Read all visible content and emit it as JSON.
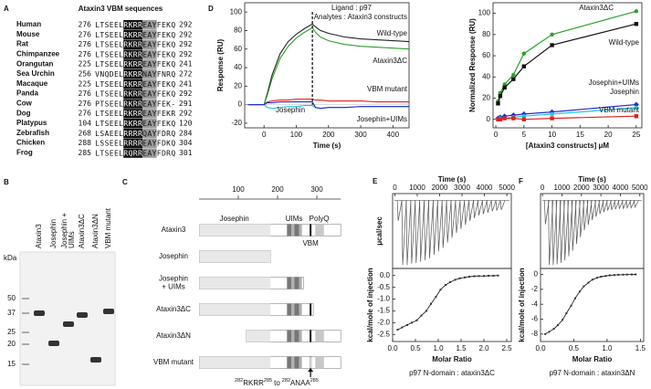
{
  "panel_labels": [
    "A",
    "B",
    "C",
    "D",
    "E",
    "F"
  ],
  "alignment": {
    "title": "Ataxin3 VBM sequences",
    "rows": [
      [
        "Human",
        276,
        "LTSEELRKRREAYFEKQ",
        292
      ],
      [
        "Mouse",
        276,
        "LTSEELRKRREAYFEKQ",
        292
      ],
      [
        "Rat",
        276,
        "LTSEELRKRREAYFEKQ",
        292
      ],
      [
        "Chimpanzee",
        276,
        "LTSEELRKRREAYFEKQ",
        292
      ],
      [
        "Orangutan",
        225,
        "LTSEELRKRREAYFEKQ",
        241
      ],
      [
        "Sea Urchin",
        256,
        "VNQDELRKRRNAYFNRQ",
        272
      ],
      [
        "Macaque",
        225,
        "LTSEELRKRREAYFEKQ",
        241
      ],
      [
        "Panda",
        276,
        "LTSEELRKRREAYFEKQ",
        292
      ],
      [
        "Cow",
        276,
        "PTSEELRKRREAYFEK-",
        291
      ],
      [
        "Dog",
        276,
        "LTSEELRKRREAYFEKR",
        292
      ],
      [
        "Platypus",
        104,
        "LTSEELRKRREAYFEKQ",
        120
      ],
      [
        "Zebrafish",
        268,
        "LSAEELRRRRQAYFDRQ",
        284
      ],
      [
        "Chicken",
        288,
        "LSSEELRRRREAYFDKQ",
        304
      ],
      [
        "Frog",
        285,
        "LTSEELRQRREAYFDRQ",
        301
      ]
    ]
  },
  "gel": {
    "unit": "kDa",
    "markers": [
      50,
      37,
      25,
      20,
      15
    ],
    "lanes": [
      [
        "Ataxin3"
      ],
      [
        "Josephin"
      ],
      [
        "Josephin +",
        "UIMs"
      ],
      [
        "Ataxin3ΔC"
      ],
      [
        "Ataxin3ΔN"
      ],
      [
        "VBM mutant"
      ]
    ]
  },
  "domains": {
    "ticks": [
      100,
      200,
      300
    ],
    "headers": [
      "Josephin",
      "UIMs",
      "PolyQ"
    ],
    "vbm": "VBM",
    "constructs": [
      [
        "Ataxin3"
      ],
      [
        "Josephin"
      ],
      [
        "Josephin",
        "+ UIMs"
      ],
      [
        "Ataxin3ΔC"
      ],
      [
        "Ataxin3ΔN"
      ],
      [
        "VBM mutant"
      ]
    ],
    "mutation": [
      "282",
      "RKRR",
      "285",
      "to",
      "282",
      "ANAA",
      "285"
    ]
  },
  "chart_data": [
    {
      "type": "line",
      "title": "Ligand : p97",
      "subtitle": "Analytes : Ataxin3 constructs",
      "x_label": "Time (s)",
      "y_label": "Response (RU)",
      "x": [
        -50,
        0,
        10,
        25,
        50,
        75,
        100,
        125,
        150,
        160,
        175,
        200,
        250,
        300,
        350,
        400,
        450
      ],
      "series": [
        {
          "name": "Wild-type",
          "color": "#222222",
          "values": [
            0,
            0,
            12,
            32,
            55,
            68,
            76,
            82,
            87,
            84,
            80,
            77,
            73,
            71,
            70,
            69,
            68
          ]
        },
        {
          "name": "Ataxin3ΔC",
          "color": "#2ca02c",
          "values": [
            0,
            0,
            10,
            28,
            50,
            63,
            72,
            78,
            83,
            78,
            73,
            69,
            65,
            63,
            62,
            61,
            60
          ]
        },
        {
          "name": "VBM mutant",
          "color": "#e02020",
          "values": [
            0,
            0,
            3,
            4,
            5,
            5,
            6,
            6,
            6,
            5,
            5,
            4,
            4,
            4,
            3,
            3,
            3
          ]
        },
        {
          "name": "Josephin",
          "color": "#1ec8e0",
          "values": [
            0,
            0,
            -3,
            -4,
            -3,
            -2,
            -2,
            -1,
            -1,
            -3,
            -4,
            -3,
            -3,
            -2,
            -2,
            -2,
            -2
          ]
        },
        {
          "name": "Josephin+UIMs",
          "color": "#2a2ad0",
          "values": [
            0,
            0,
            2,
            2,
            3,
            3,
            3,
            3,
            3,
            -3,
            -4,
            -3,
            -3,
            -2,
            -2,
            -2,
            -2
          ]
        }
      ],
      "xlim": [
        -60,
        450
      ],
      "ylim": [
        -25,
        110
      ],
      "xticks": [
        0,
        100,
        200,
        300,
        400
      ],
      "yticks": [
        -20,
        0,
        20,
        40,
        60,
        80,
        100
      ],
      "vline": 150
    },
    {
      "type": "scatter",
      "x_label": "[Ataxin3 constructs] μM",
      "y_label": "Normalized Response (RU)",
      "x": [
        0.39,
        0.78,
        1.56,
        3.13,
        5,
        10,
        25
      ],
      "series": [
        {
          "name": "Ataxin3ΔC",
          "color": "#2ca02c",
          "values": [
            17,
            25,
            33,
            42,
            62,
            80,
            102
          ]
        },
        {
          "name": "Wild-type",
          "color": "#111111",
          "values": [
            15,
            22,
            30,
            38,
            50,
            70,
            90
          ]
        },
        {
          "name": "Josephin+UIMs",
          "color": "#2a2ad0",
          "values": [
            1,
            2,
            3,
            4,
            5,
            7,
            14
          ]
        },
        {
          "name": "Josephin",
          "color": "#1ec8e0",
          "values": [
            0,
            1,
            1,
            2,
            3,
            5,
            11
          ]
        },
        {
          "name": "VBM mutant",
          "color": "#e02020",
          "values": [
            0,
            0,
            1,
            1,
            0,
            1,
            3
          ]
        }
      ],
      "xlim": [
        -0.5,
        26
      ],
      "ylim": [
        -8,
        110
      ],
      "xticks": [
        0,
        5,
        10,
        15,
        20,
        25
      ],
      "yticks": [
        0,
        20,
        40,
        60,
        80,
        100
      ]
    },
    {
      "type": "peaks",
      "x_label": "Time (s)",
      "y_label": "μcal/sec",
      "x": [
        150,
        350,
        550,
        750,
        950,
        1150,
        1350,
        1550,
        1750,
        1950,
        2150,
        2350,
        2550,
        2750,
        2950,
        3150,
        3350,
        3550,
        3750,
        3950,
        4150,
        4350,
        4550,
        4750
      ],
      "values": [
        -0.3,
        -0.95,
        -0.95,
        -0.93,
        -0.92,
        -0.9,
        -0.88,
        -0.85,
        -0.8,
        -0.75,
        -0.7,
        -0.62,
        -0.55,
        -0.48,
        -0.42,
        -0.36,
        -0.3,
        -0.26,
        -0.22,
        -0.2,
        -0.18,
        -0.16,
        -0.15,
        -0.14
      ],
      "xlim": [
        -100,
        5200
      ],
      "ylim": [
        -1.0,
        0.1
      ],
      "xticks": [
        0,
        1000,
        2000,
        3000,
        4000,
        5000
      ]
    },
    {
      "type": "isotherm",
      "x_label": "Molar Ratio",
      "y_label": "kcal/mole of injection",
      "caption": "p97 N-domain : ataxin3ΔC",
      "x": [
        0.11,
        0.21,
        0.32,
        0.42,
        0.53,
        0.63,
        0.74,
        0.84,
        0.95,
        1.05,
        1.16,
        1.26,
        1.37,
        1.47,
        1.58,
        1.68,
        1.79,
        1.89,
        2.0,
        2.1,
        2.21,
        2.31
      ],
      "values": [
        -2.3,
        -2.2,
        -2.1,
        -2.0,
        -1.9,
        -1.7,
        -1.5,
        -1.2,
        -0.9,
        -0.6,
        -0.4,
        -0.28,
        -0.18,
        -0.12,
        -0.08,
        -0.05,
        -0.03,
        -0.02,
        -0.02,
        -0.01,
        -0.01,
        0
      ],
      "xlim": [
        0,
        2.6
      ],
      "ylim": [
        -2.8,
        0.3
      ],
      "xticks": [
        {
          "value": 0,
          "label": "0.0"
        },
        0.5,
        {
          "value": 1,
          "label": "1.0"
        },
        1.5,
        {
          "value": 2,
          "label": "2.0"
        },
        2.5
      ],
      "yticks": [
        {
          "value": 0,
          "label": "0.0"
        },
        -0.5,
        {
          "value": -1,
          "label": "-1.0"
        },
        -1.5,
        {
          "value": -2,
          "label": "-2.0"
        },
        -2.5
      ]
    },
    {
      "type": "peaks",
      "x_label": "Time (s)",
      "x": [
        150,
        350,
        550,
        750,
        950,
        1150,
        1350,
        1550,
        1750,
        1950,
        2150,
        2350,
        2550,
        2750,
        2950,
        3150,
        3350,
        3550,
        3750,
        3950,
        4150,
        4350,
        4550,
        4750
      ],
      "values": [
        -0.35,
        -0.95,
        -0.95,
        -0.94,
        -0.92,
        -0.88,
        -0.82,
        -0.74,
        -0.64,
        -0.54,
        -0.44,
        -0.36,
        -0.29,
        -0.24,
        -0.2,
        -0.17,
        -0.15,
        -0.14,
        -0.13,
        -0.12,
        -0.12,
        -0.11,
        -0.11,
        -0.1
      ],
      "xlim": [
        -100,
        5200
      ],
      "ylim": [
        -1.0,
        0.1
      ],
      "xticks": [
        0,
        1000,
        2000,
        3000,
        4000,
        5000
      ]
    },
    {
      "type": "isotherm",
      "x_label": "Molar Ratio",
      "y_label": "kcal/mole of injection",
      "caption": "p97 N-domain : ataxin3ΔN",
      "x": [
        0.07,
        0.13,
        0.2,
        0.26,
        0.33,
        0.39,
        0.46,
        0.52,
        0.59,
        0.65,
        0.72,
        0.78,
        0.85,
        0.91,
        0.98,
        1.04,
        1.11,
        1.17,
        1.24,
        1.3,
        1.37,
        1.43
      ],
      "values": [
        -8.0,
        -7.7,
        -7.3,
        -6.8,
        -6.1,
        -5.2,
        -4.2,
        -3.2,
        -2.3,
        -1.6,
        -1.1,
        -0.7,
        -0.45,
        -0.3,
        -0.2,
        -0.12,
        -0.08,
        -0.05,
        -0.03,
        -0.02,
        -0.01,
        0
      ],
      "xlim": [
        0,
        1.55
      ],
      "ylim": [
        -9,
        0.8
      ],
      "xticks": [
        {
          "value": 0,
          "label": "0.0"
        },
        0.5,
        {
          "value": 1,
          "label": "1.0"
        },
        1.5
      ],
      "yticks": [
        0,
        -2,
        -4,
        -6,
        -8
      ]
    }
  ]
}
